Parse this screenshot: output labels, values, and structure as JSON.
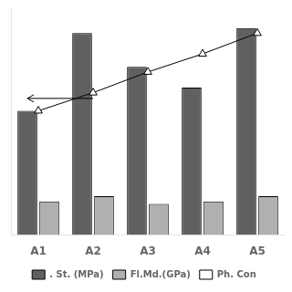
{
  "chart_data": {
    "type": "bar",
    "categories": [
      "A1",
      "A2",
      "A3",
      "A4",
      "A5"
    ],
    "series": [
      {
        "name": ". St. (MPa)",
        "color": "#606060",
        "values": [
          48,
          78,
          65,
          57,
          80
        ]
      },
      {
        "name": "Fl.Md.(GPa)",
        "color": "#b0b0b0",
        "values": [
          13,
          15,
          12,
          13,
          15
        ]
      },
      {
        "name": "Ph. Con",
        "type": "line",
        "color": "#000000",
        "marker": "triangle",
        "values": [
          48,
          55,
          63,
          70,
          78
        ]
      }
    ],
    "ylim": [
      0,
      88
    ],
    "grid": false,
    "legend": "bottom",
    "tick_labels": "x"
  }
}
